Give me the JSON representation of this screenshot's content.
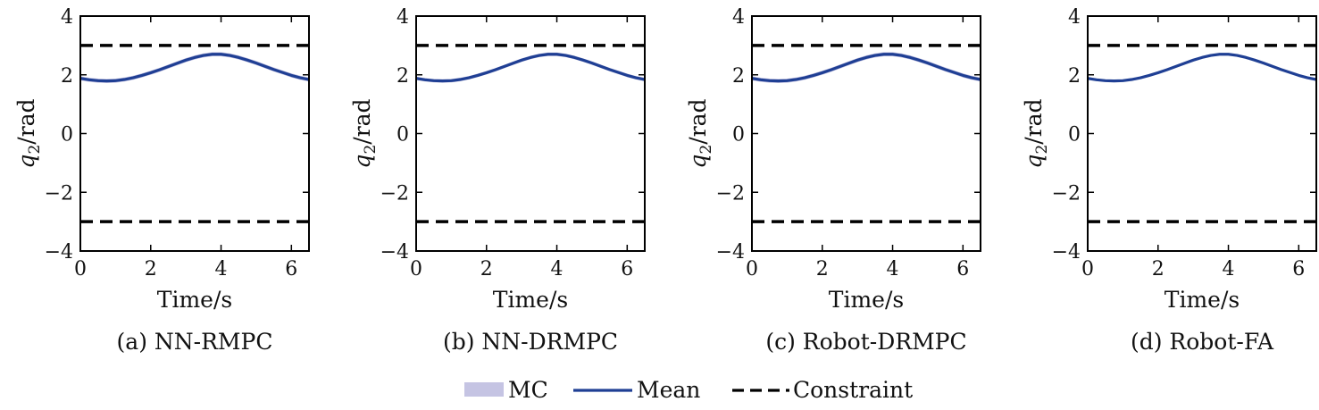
{
  "chart_data": [
    {
      "type": "line",
      "title": "",
      "caption": "(a) NN-RMPC",
      "xlabel": "Time/s",
      "ylabel_var": "q",
      "ylabel_sub": "2",
      "ylabel_unit": "/rad",
      "xlim": [
        0,
        6.5
      ],
      "ylim": [
        -4,
        4
      ],
      "xticks": [
        0,
        2,
        4,
        6
      ],
      "yticks": [
        -4,
        -2,
        0,
        2,
        4
      ],
      "ytick_labels": [
        "−4",
        "−2",
        "0",
        "2",
        "4"
      ],
      "grid": false,
      "series": [
        {
          "name": "Mean",
          "x": [
            0,
            0.25,
            0.5,
            0.75,
            1.0,
            1.25,
            1.5,
            1.75,
            2.0,
            2.25,
            2.5,
            2.75,
            3.0,
            3.25,
            3.5,
            3.75,
            4.0,
            4.25,
            4.5,
            4.75,
            5.0,
            5.25,
            5.5,
            5.75,
            6.0,
            6.25,
            6.5
          ],
          "y": [
            1.88,
            1.83,
            1.8,
            1.79,
            1.8,
            1.84,
            1.9,
            1.98,
            2.07,
            2.17,
            2.28,
            2.39,
            2.5,
            2.59,
            2.66,
            2.7,
            2.7,
            2.66,
            2.59,
            2.5,
            2.4,
            2.29,
            2.18,
            2.08,
            1.98,
            1.9,
            1.84
          ]
        },
        {
          "name": "MC",
          "band": [
            -0.07,
            0.07
          ]
        },
        {
          "name": "Constraint",
          "values": [
            3,
            -3
          ]
        }
      ]
    },
    {
      "type": "line",
      "title": "",
      "caption": "(b) NN-DRMPC",
      "xlabel": "Time/s",
      "ylabel_var": "q",
      "ylabel_sub": "2",
      "ylabel_unit": "/rad",
      "xlim": [
        0,
        6.5
      ],
      "ylim": [
        -4,
        4
      ],
      "xticks": [
        0,
        2,
        4,
        6
      ],
      "yticks": [
        -4,
        -2,
        0,
        2,
        4
      ],
      "ytick_labels": [
        "−4",
        "−2",
        "0",
        "2",
        "4"
      ],
      "grid": false,
      "series": [
        {
          "name": "Mean",
          "x": [
            0,
            0.25,
            0.5,
            0.75,
            1.0,
            1.25,
            1.5,
            1.75,
            2.0,
            2.25,
            2.5,
            2.75,
            3.0,
            3.25,
            3.5,
            3.75,
            4.0,
            4.25,
            4.5,
            4.75,
            5.0,
            5.25,
            5.5,
            5.75,
            6.0,
            6.25,
            6.5
          ],
          "y": [
            1.88,
            1.83,
            1.8,
            1.79,
            1.8,
            1.84,
            1.9,
            1.98,
            2.07,
            2.17,
            2.28,
            2.39,
            2.5,
            2.59,
            2.66,
            2.7,
            2.7,
            2.66,
            2.59,
            2.5,
            2.4,
            2.29,
            2.18,
            2.08,
            1.98,
            1.9,
            1.84
          ]
        },
        {
          "name": "MC",
          "band": [
            -0.06,
            0.06
          ]
        },
        {
          "name": "Constraint",
          "values": [
            3,
            -3
          ]
        }
      ]
    },
    {
      "type": "line",
      "title": "",
      "caption": "(c) Robot-DRMPC",
      "xlabel": "Time/s",
      "ylabel_var": "q",
      "ylabel_sub": "2",
      "ylabel_unit": "/rad",
      "xlim": [
        0,
        6.5
      ],
      "ylim": [
        -4,
        4
      ],
      "xticks": [
        0,
        2,
        4,
        6
      ],
      "yticks": [
        -4,
        -2,
        0,
        2,
        4
      ],
      "ytick_labels": [
        "−4",
        "−2",
        "0",
        "2",
        "4"
      ],
      "grid": false,
      "series": [
        {
          "name": "Mean",
          "x": [
            0,
            0.25,
            0.5,
            0.75,
            1.0,
            1.25,
            1.5,
            1.75,
            2.0,
            2.25,
            2.5,
            2.75,
            3.0,
            3.25,
            3.5,
            3.75,
            4.0,
            4.25,
            4.5,
            4.75,
            5.0,
            5.25,
            5.5,
            5.75,
            6.0,
            6.25,
            6.5
          ],
          "y": [
            1.88,
            1.83,
            1.8,
            1.79,
            1.8,
            1.84,
            1.9,
            1.98,
            2.07,
            2.17,
            2.28,
            2.39,
            2.5,
            2.59,
            2.66,
            2.7,
            2.7,
            2.66,
            2.59,
            2.5,
            2.4,
            2.29,
            2.18,
            2.08,
            1.98,
            1.9,
            1.84
          ]
        },
        {
          "name": "MC",
          "band": [
            -0.07,
            0.07
          ]
        },
        {
          "name": "Constraint",
          "values": [
            3,
            -3
          ]
        }
      ]
    },
    {
      "type": "line",
      "title": "",
      "caption": "(d) Robot-FA",
      "xlabel": "Time/s",
      "ylabel_var": "q",
      "ylabel_sub": "2",
      "ylabel_unit": "/rad",
      "xlim": [
        0,
        6.5
      ],
      "ylim": [
        -4,
        4
      ],
      "xticks": [
        0,
        2,
        4,
        6
      ],
      "yticks": [
        -4,
        -2,
        0,
        2,
        4
      ],
      "ytick_labels": [
        "−4",
        "−2",
        "0",
        "2",
        "4"
      ],
      "grid": false,
      "series": [
        {
          "name": "Mean",
          "x": [
            0,
            0.25,
            0.5,
            0.75,
            1.0,
            1.25,
            1.5,
            1.75,
            2.0,
            2.25,
            2.5,
            2.75,
            3.0,
            3.25,
            3.5,
            3.75,
            4.0,
            4.25,
            4.5,
            4.75,
            5.0,
            5.25,
            5.5,
            5.75,
            6.0,
            6.25,
            6.5
          ],
          "y": [
            1.88,
            1.83,
            1.8,
            1.79,
            1.8,
            1.84,
            1.9,
            1.98,
            2.07,
            2.17,
            2.28,
            2.39,
            2.5,
            2.59,
            2.66,
            2.7,
            2.7,
            2.66,
            2.59,
            2.5,
            2.4,
            2.29,
            2.18,
            2.08,
            1.98,
            1.9,
            1.84
          ]
        },
        {
          "name": "MC",
          "band": [
            -0.03,
            0.03
          ]
        },
        {
          "name": "Constraint",
          "values": [
            3,
            -3
          ]
        }
      ]
    }
  ],
  "legend": {
    "placement": "bottom-center",
    "entries": [
      {
        "label": "MC",
        "style": "band"
      },
      {
        "label": "Mean",
        "style": "line"
      },
      {
        "label": "Constraint",
        "style": "dashed"
      }
    ]
  },
  "colors": {
    "mean": "#1f3f94",
    "band": "#c5c4e3",
    "constraint": "#000000",
    "axes": "#000000"
  }
}
